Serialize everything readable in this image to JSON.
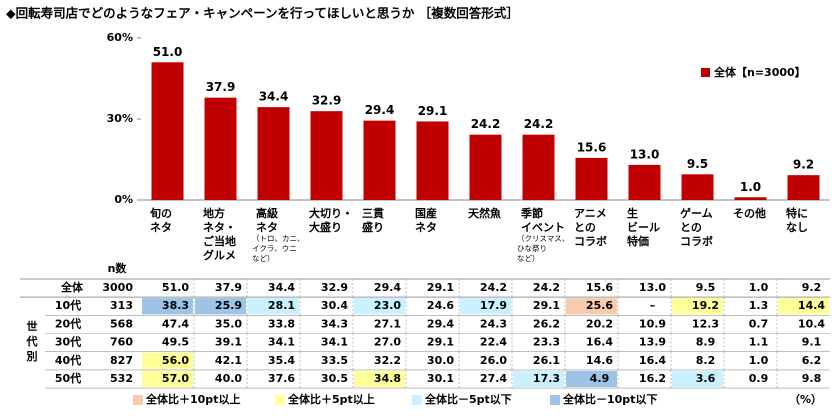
{
  "chart_data": {
    "type": "bar",
    "title": "◆回転寿司店でどのようなフェア・キャンペーンを行ってほしいと思うか ［複数回答形式］",
    "categories": [
      "旬の\nネタ",
      "地方\nネタ・\nご当地\nグルメ",
      "高級\nネタ",
      "大切り・\n大盛り",
      "三貫\n盛り",
      "国産\nネタ",
      "天然魚",
      "季節\nイベント",
      "アニメ\nとの\nコラボ",
      "生\nビール\n特価",
      "ゲーム\nとの\nコラボ",
      "その他",
      "特に\nなし"
    ],
    "category_notes": [
      null,
      null,
      "（トロ、カニ、\nイクラ、ウニ\nなど）",
      null,
      null,
      null,
      null,
      "（クリスマス、\nひな祭り\nなど）",
      null,
      null,
      null,
      null,
      null
    ],
    "series": [
      {
        "name": "全体【n=3000】",
        "color": "#c00000",
        "values": [
          51.0,
          37.9,
          34.4,
          32.9,
          29.4,
          29.1,
          24.2,
          24.2,
          15.6,
          13.0,
          9.5,
          1.0,
          9.2
        ],
        "value_labels": [
          "51.0",
          "37.9",
          "34.4",
          "32.9",
          "29.4",
          "29.1",
          "24.2",
          "24.2",
          "15.6",
          "13.0",
          "9.5",
          "1.0",
          "9.2"
        ]
      }
    ],
    "ylim": [
      0,
      60
    ],
    "yticks": [
      {
        "value": 0,
        "label": "0%"
      },
      {
        "value": 30,
        "label": "30%"
      },
      {
        "value": 60,
        "label": "60%"
      }
    ],
    "grid": false,
    "legend": "top-right"
  },
  "table": {
    "n_header": "n数",
    "group_label": "世代別",
    "rows": [
      {
        "label": "全体",
        "n": "3000",
        "values": [
          "51.0",
          "37.9",
          "34.4",
          "32.9",
          "29.4",
          "29.1",
          "24.2",
          "24.2",
          "15.6",
          "13.0",
          "9.5",
          "1.0",
          "9.2"
        ],
        "marks": [
          null,
          null,
          null,
          null,
          null,
          null,
          null,
          null,
          null,
          null,
          null,
          null,
          null
        ]
      },
      {
        "label": "10代",
        "n": "313",
        "values": [
          "38.3",
          "25.9",
          "28.1",
          "30.4",
          "23.0",
          "24.6",
          "17.9",
          "29.1",
          "25.6",
          "–",
          "19.2",
          "1.3",
          "14.4"
        ],
        "marks": [
          3,
          3,
          2,
          null,
          2,
          null,
          2,
          null,
          0,
          null,
          1,
          null,
          1
        ]
      },
      {
        "label": "20代",
        "n": "568",
        "values": [
          "47.4",
          "35.0",
          "33.8",
          "34.3",
          "27.1",
          "29.4",
          "24.3",
          "26.2",
          "20.2",
          "10.9",
          "12.3",
          "0.7",
          "10.4"
        ],
        "marks": [
          null,
          null,
          null,
          null,
          null,
          null,
          null,
          null,
          null,
          null,
          null,
          null,
          null
        ]
      },
      {
        "label": "30代",
        "n": "760",
        "values": [
          "49.5",
          "39.1",
          "34.1",
          "34.1",
          "27.0",
          "29.1",
          "22.4",
          "23.3",
          "16.4",
          "13.9",
          "8.9",
          "1.1",
          "9.1"
        ],
        "marks": [
          null,
          null,
          null,
          null,
          null,
          null,
          null,
          null,
          null,
          null,
          null,
          null,
          null
        ]
      },
      {
        "label": "40代",
        "n": "827",
        "values": [
          "56.0",
          "42.1",
          "35.4",
          "33.5",
          "32.2",
          "30.0",
          "26.0",
          "26.1",
          "14.6",
          "16.4",
          "8.2",
          "1.0",
          "6.2"
        ],
        "marks": [
          1,
          null,
          null,
          null,
          null,
          null,
          null,
          null,
          null,
          null,
          null,
          null,
          null
        ]
      },
      {
        "label": "50代",
        "n": "532",
        "values": [
          "57.0",
          "40.0",
          "37.6",
          "30.5",
          "34.8",
          "30.1",
          "27.4",
          "17.3",
          "4.9",
          "16.2",
          "3.6",
          "0.9",
          "9.8"
        ],
        "marks": [
          1,
          null,
          null,
          null,
          1,
          null,
          null,
          2,
          3,
          null,
          2,
          null,
          null
        ]
      }
    ],
    "legend": [
      {
        "label": "全体比＋10pt以上",
        "color": "#f8cbad"
      },
      {
        "label": "全体比＋5pt以上",
        "color": "#ffff99"
      },
      {
        "label": "全体比－5pt以下",
        "color": "#c9f1ff"
      },
      {
        "label": "全体比－10pt以下",
        "color": "#9dc3e6"
      }
    ],
    "unit": "（%）"
  }
}
